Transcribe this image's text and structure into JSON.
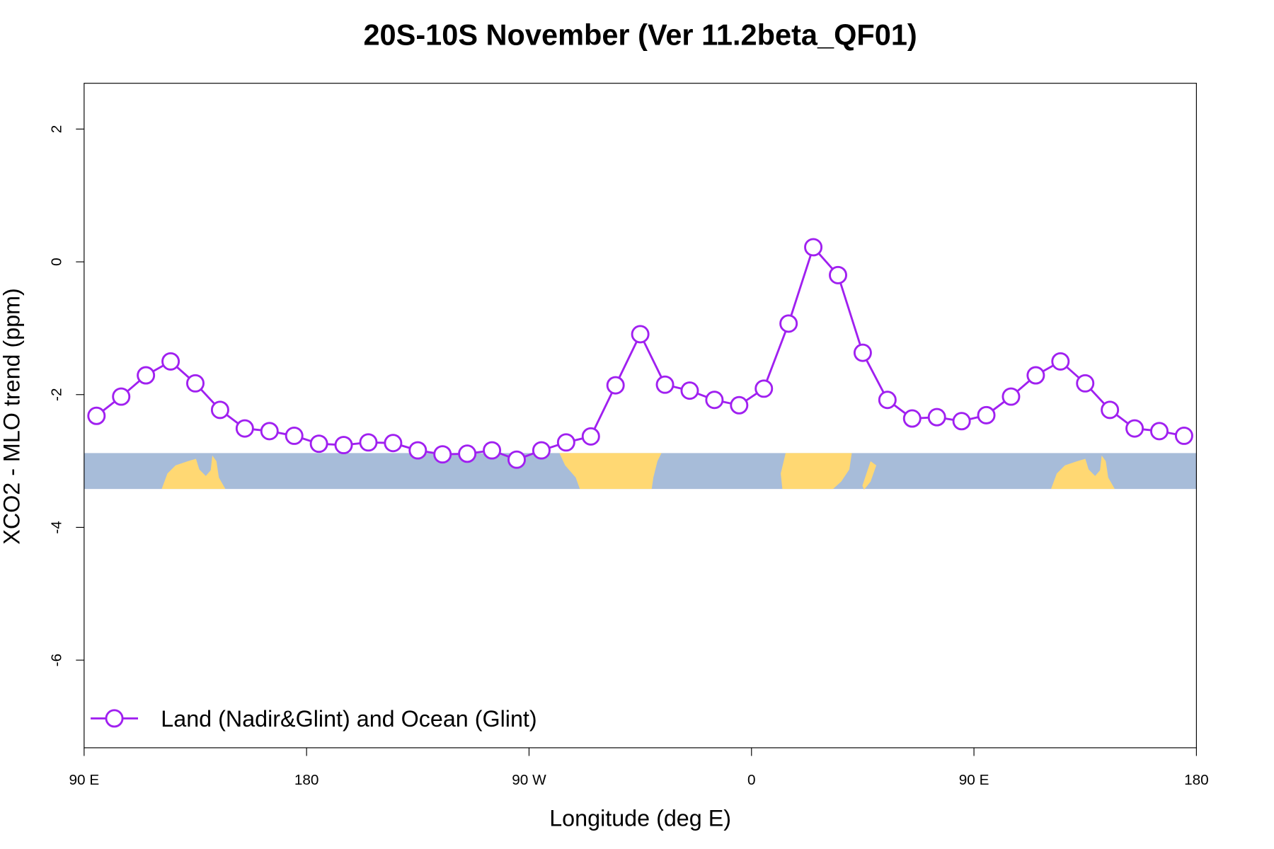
{
  "chart_data": {
    "type": "line",
    "title": "20S-10S November (Ver 11.2beta_QF01)",
    "x_label": "Longitude (deg E)",
    "y_label": "XCO2 - MLO trend (ppm)",
    "x": [
      95,
      105,
      115,
      125,
      135,
      145,
      155,
      165,
      175,
      185,
      195,
      205,
      215,
      225,
      235,
      245,
      255,
      265,
      275,
      285,
      295,
      305,
      315,
      325,
      335,
      345,
      355,
      365,
      375,
      385,
      395,
      405,
      415,
      425,
      435,
      445,
      455,
      465,
      475,
      485,
      495,
      505,
      515,
      525,
      535
    ],
    "series": [
      {
        "name": "Land (Nadir&Glint) and Ocean (Glint)",
        "color": "#a020f0",
        "values": [
          -2.32,
          -2.03,
          -1.71,
          -1.5,
          -1.83,
          -2.23,
          -2.51,
          -2.55,
          -2.62,
          -2.74,
          -2.76,
          -2.72,
          -2.73,
          -2.84,
          -2.9,
          -2.89,
          -2.84,
          -2.98,
          -2.84,
          -2.72,
          -2.63,
          -1.86,
          -1.09,
          -1.85,
          -1.94,
          -2.08,
          -2.16,
          -1.91,
          -0.93,
          0.22,
          -0.2,
          -1.37,
          -2.08,
          -2.36,
          -2.34,
          -2.4,
          -2.31,
          -2.03,
          -1.71,
          -1.5,
          -1.83,
          -2.23,
          -2.51,
          -2.55,
          -2.62
        ]
      }
    ],
    "xlim": [
      90,
      540
    ],
    "xticks": [
      {
        "value": 90,
        "label": "90 E"
      },
      180,
      {
        "value": 270,
        "label": "90 W"
      },
      {
        "value": 360,
        "label": "0"
      },
      {
        "value": 450,
        "label": "90 E"
      },
      {
        "value": 540,
        "label": "180"
      }
    ],
    "ylim": [
      -7.32,
      2.69
    ],
    "yticks": [
      -6,
      -4,
      -2,
      0,
      2
    ],
    "legend": "bottom-left"
  }
}
